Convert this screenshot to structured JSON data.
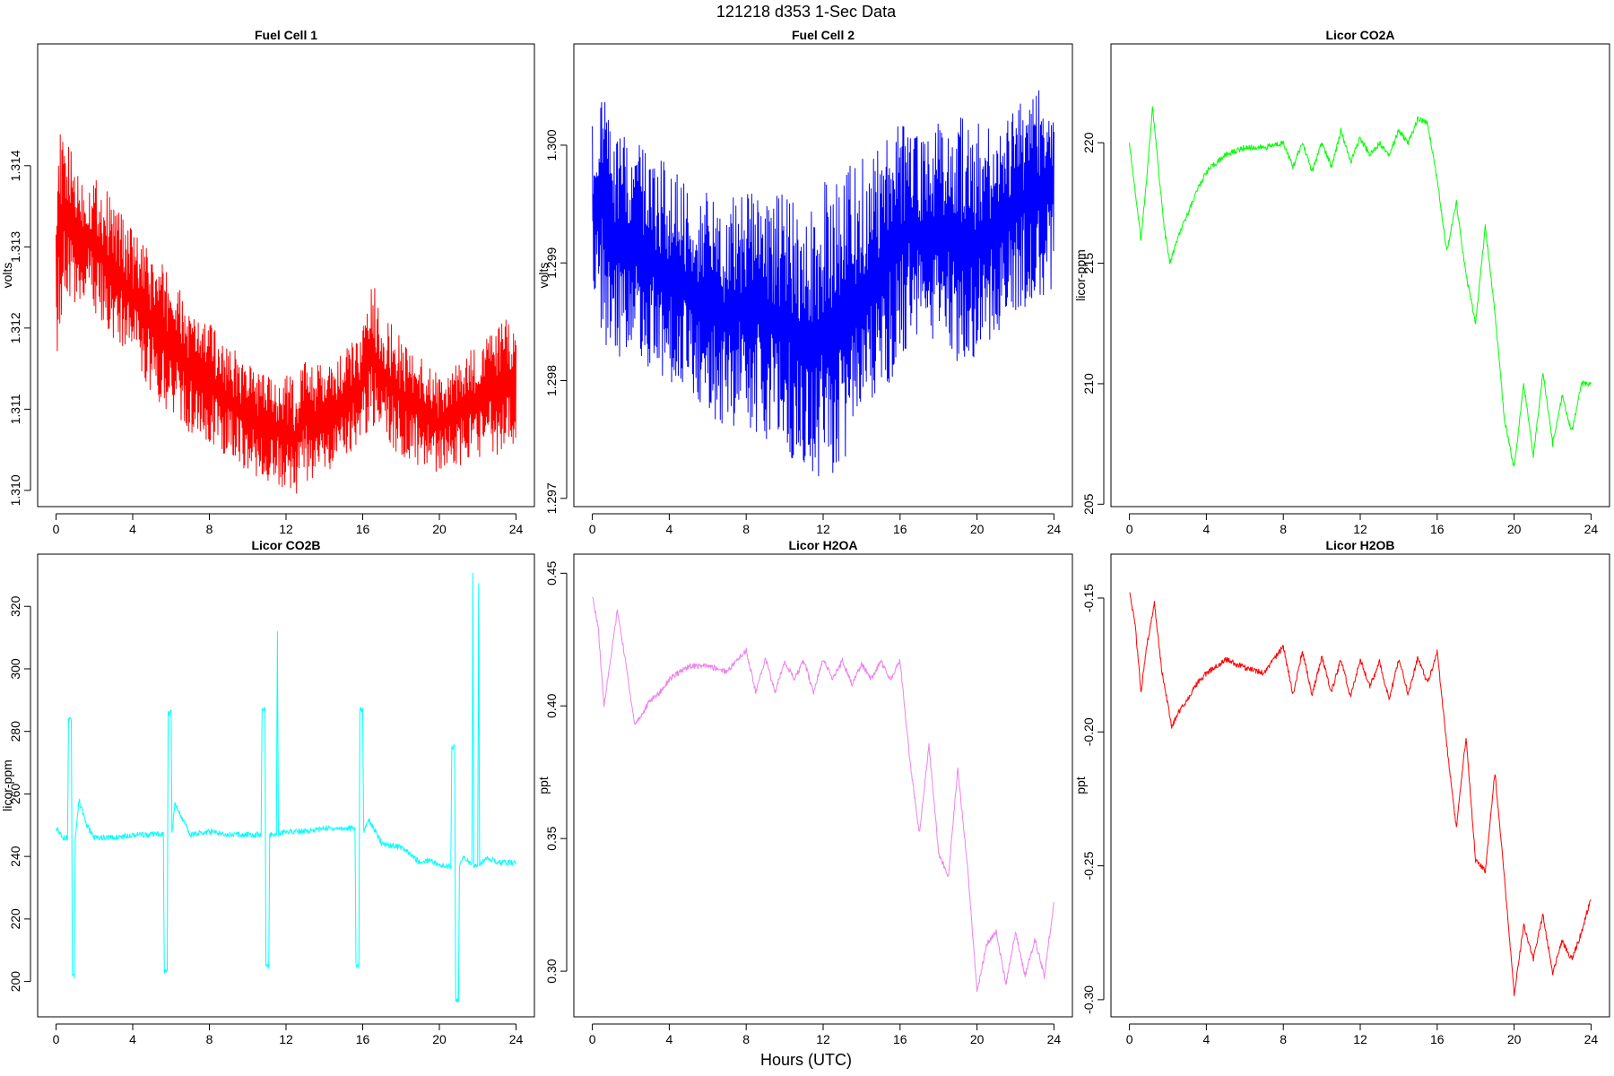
{
  "figure": {
    "title": "121218   d353   1-Sec Data",
    "xlabel": "Hours (UTC)"
  },
  "chart_data": [
    {
      "type": "line",
      "title": "Fuel Cell 1",
      "ylabel": "volts",
      "color": "#ff0000",
      "xlim": [
        0,
        24
      ],
      "ylim": [
        1.3098,
        1.3155
      ],
      "xticks": [
        0,
        4,
        8,
        12,
        16,
        20,
        24
      ],
      "yticks": [
        1.31,
        1.311,
        1.312,
        1.313,
        1.314
      ],
      "ytick_labels": [
        "1.310",
        "1.311",
        "1.312",
        "1.313",
        "1.314"
      ],
      "x": [
        0,
        0.5,
        1,
        1.5,
        2,
        3,
        4,
        5,
        6,
        7,
        8,
        9,
        10,
        11,
        12,
        12.5,
        13,
        14,
        15,
        16,
        16.5,
        17,
        18,
        19,
        20,
        21,
        22,
        23,
        24
      ],
      "ymin": [
        1.3115,
        1.3125,
        1.3122,
        1.3124,
        1.3122,
        1.3118,
        1.3116,
        1.3112,
        1.3109,
        1.3107,
        1.3106,
        1.3104,
        1.3102,
        1.3101,
        1.31,
        1.3099,
        1.3101,
        1.3102,
        1.3104,
        1.3106,
        1.3108,
        1.3107,
        1.3104,
        1.3103,
        1.3102,
        1.3103,
        1.3104,
        1.3104,
        1.3106
      ],
      "ymax": [
        1.3145,
        1.3143,
        1.3141,
        1.3138,
        1.3139,
        1.3136,
        1.3132,
        1.3129,
        1.3127,
        1.3122,
        1.3121,
        1.3118,
        1.3116,
        1.3114,
        1.3115,
        1.3113,
        1.3117,
        1.3115,
        1.3117,
        1.312,
        1.3126,
        1.3122,
        1.3119,
        1.3117,
        1.3114,
        1.3116,
        1.3118,
        1.3121,
        1.3121
      ]
    },
    {
      "type": "line",
      "title": "Fuel Cell 2",
      "ylabel": "volts",
      "color": "#0000ff",
      "xlim": [
        0,
        24
      ],
      "ylim": [
        1.29693,
        1.30086
      ],
      "xticks": [
        0,
        4,
        8,
        12,
        16,
        20,
        24
      ],
      "yticks": [
        1.297,
        1.298,
        1.299,
        1.3
      ],
      "ytick_labels": [
        "1.297",
        "1.298",
        "1.299",
        "1.300"
      ],
      "x": [
        0,
        0.5,
        1,
        2,
        3,
        4,
        5,
        6,
        7,
        8,
        9,
        10,
        11,
        12,
        13,
        14,
        15,
        16,
        16.5,
        17,
        18,
        19,
        20,
        21,
        22,
        23,
        24
      ],
      "ymin": [
        1.2987,
        1.2984,
        1.2981,
        1.2983,
        1.2981,
        1.298,
        1.2979,
        1.2977,
        1.2976,
        1.2976,
        1.2975,
        1.2974,
        1.2972,
        1.2971,
        1.2973,
        1.2976,
        1.2979,
        1.2981,
        1.2983,
        1.2984,
        1.2983,
        1.2981,
        1.2981,
        1.2984,
        1.2986,
        1.2986,
        1.2988
      ],
      "ymax": [
        1.3002,
        1.3006,
        1.3002,
        1.3,
        1.3,
        1.2998,
        1.2997,
        1.2996,
        1.2995,
        1.2997,
        1.2996,
        1.2996,
        1.2995,
        1.2997,
        1.2998,
        1.2999,
        1.3,
        1.3002,
        1.3003,
        1.3001,
        1.3002,
        1.3003,
        1.3002,
        1.3001,
        1.3004,
        1.3005,
        1.3005
      ]
    },
    {
      "type": "line",
      "title": "Licor CO2A",
      "ylabel": "licor-ppm",
      "color": "#00ff00",
      "xlim": [
        0,
        24
      ],
      "ylim": [
        204.9,
        224.1
      ],
      "xticks": [
        0,
        4,
        8,
        12,
        16,
        20,
        24
      ],
      "yticks": [
        205,
        210,
        215,
        220
      ],
      "ytick_labels": [
        "205",
        "210",
        "215",
        "220"
      ],
      "x": [
        0,
        0.3,
        0.6,
        0.9,
        1.2,
        1.5,
        1.8,
        2.1,
        2.5,
        3,
        3.5,
        4,
        5,
        6,
        7,
        8,
        8.5,
        9,
        9.5,
        10,
        10.5,
        11,
        11.5,
        12,
        12.5,
        13,
        13.5,
        14,
        14.5,
        15,
        15.5,
        16,
        16.5,
        17,
        17.5,
        18,
        18.5,
        19,
        19.5,
        20,
        20.5,
        21,
        21.5,
        22,
        22.5,
        23,
        23.5,
        24
      ],
      "y": [
        220.0,
        218.0,
        216.0,
        218.5,
        221.5,
        219.0,
        216.5,
        215.0,
        216.0,
        217.0,
        218.0,
        218.8,
        219.5,
        219.8,
        219.8,
        220.0,
        219.0,
        220.0,
        218.8,
        220.0,
        219.0,
        220.5,
        219.2,
        220.2,
        219.5,
        220.0,
        219.5,
        220.5,
        220.0,
        221.0,
        220.8,
        218.5,
        215.5,
        217.5,
        214.5,
        212.5,
        216.5,
        213.0,
        208.5,
        206.5,
        210.0,
        207.0,
        210.5,
        207.5,
        209.5,
        208.0,
        210.0,
        210.0
      ]
    },
    {
      "type": "line",
      "title": "Licor CO2B",
      "ylabel": "licor-ppm",
      "color": "#00ffff",
      "xlim": [
        0,
        24
      ],
      "ylim": [
        188.7,
        336.7
      ],
      "xticks": [
        0,
        4,
        8,
        12,
        16,
        20,
        24
      ],
      "yticks": [
        200,
        220,
        240,
        260,
        280,
        300,
        320
      ],
      "ytick_labels": [
        "200",
        "220",
        "240",
        "260",
        "280",
        "300",
        "320"
      ],
      "x": [
        0,
        0.4,
        0.6,
        0.65,
        0.8,
        0.85,
        0.95,
        1.0,
        1.2,
        1.6,
        2,
        3,
        4,
        5,
        5.6,
        5.65,
        5.8,
        5.85,
        6.0,
        6.05,
        6.2,
        7,
        8,
        9,
        10,
        10.7,
        10.75,
        10.9,
        10.95,
        11.1,
        11.15,
        11.3,
        11.5,
        11.55,
        11.6,
        12,
        13,
        14,
        15,
        15.6,
        15.65,
        15.8,
        15.85,
        16.0,
        16.05,
        16.3,
        17,
        18,
        19,
        19.5,
        20,
        20.5,
        20.6,
        20.65,
        20.8,
        20.85,
        21.0,
        21.05,
        21.3,
        21.7,
        21.75,
        21.8,
        22.0,
        22.05,
        22.1,
        22.5,
        23,
        23.5,
        24
      ],
      "y": [
        249,
        246,
        246,
        284,
        284,
        202,
        202,
        246,
        258,
        250,
        246,
        246,
        247,
        247,
        247,
        203,
        203,
        286,
        286,
        247,
        257,
        247,
        248,
        247,
        247,
        247,
        287,
        287,
        205,
        205,
        247,
        247,
        247,
        312,
        247,
        248,
        248,
        249,
        249,
        249,
        205,
        205,
        287,
        287,
        248,
        252,
        244,
        243,
        238,
        239,
        237,
        237,
        237,
        275,
        275,
        194,
        194,
        237,
        240,
        237,
        330,
        237,
        237,
        328,
        237,
        240,
        238,
        238,
        238
      ]
    },
    {
      "type": "line",
      "title": "Licor H2OA",
      "ylabel": "ppt",
      "color": "#ee82ee",
      "xlim": [
        0,
        24
      ],
      "ylim": [
        0.2828,
        0.4572
      ],
      "xticks": [
        0,
        4,
        8,
        12,
        16,
        20,
        24
      ],
      "yticks": [
        0.3,
        0.35,
        0.4,
        0.45
      ],
      "ytick_labels": [
        "0.30",
        "0.35",
        "0.40",
        "0.45"
      ],
      "x": [
        0,
        0.3,
        0.6,
        0.9,
        1.3,
        1.7,
        2.2,
        2.6,
        3,
        3.5,
        4,
        5,
        6,
        7,
        8,
        8.5,
        9,
        9.5,
        10,
        10.5,
        11,
        11.5,
        12,
        12.5,
        13,
        13.5,
        14,
        14.5,
        15,
        15.5,
        16,
        16.5,
        17,
        17.5,
        18,
        18.5,
        19,
        19.5,
        20,
        20.5,
        21,
        21.5,
        22,
        22.5,
        23,
        23.5,
        24
      ],
      "y": [
        0.441,
        0.43,
        0.4,
        0.415,
        0.436,
        0.418,
        0.393,
        0.397,
        0.402,
        0.405,
        0.41,
        0.415,
        0.415,
        0.413,
        0.421,
        0.405,
        0.418,
        0.405,
        0.417,
        0.41,
        0.417,
        0.405,
        0.418,
        0.41,
        0.417,
        0.408,
        0.416,
        0.41,
        0.417,
        0.41,
        0.417,
        0.38,
        0.352,
        0.385,
        0.345,
        0.335,
        0.376,
        0.34,
        0.292,
        0.31,
        0.315,
        0.295,
        0.315,
        0.298,
        0.312,
        0.298,
        0.326
      ]
    },
    {
      "type": "line",
      "title": "Licor H2OB",
      "ylabel": "ppt",
      "color": "#ff0000",
      "xlim": [
        0,
        24
      ],
      "ylim": [
        -0.3064,
        -0.1336
      ],
      "xticks": [
        0,
        4,
        8,
        12,
        16,
        20,
        24
      ],
      "yticks": [
        -0.3,
        -0.25,
        -0.2,
        -0.15
      ],
      "ytick_labels": [
        "-0.30",
        "-0.25",
        "-0.20",
        "-0.15"
      ],
      "x": [
        0,
        0.3,
        0.6,
        0.9,
        1.3,
        1.7,
        2.2,
        2.6,
        3,
        3.5,
        4,
        5,
        6,
        7,
        8,
        8.5,
        9,
        9.5,
        10,
        10.5,
        11,
        11.5,
        12,
        12.5,
        13,
        13.5,
        14,
        14.5,
        15,
        15.5,
        16,
        16.5,
        17,
        17.5,
        18,
        18.5,
        19,
        19.5,
        20,
        20.5,
        21,
        21.5,
        22,
        22.5,
        23,
        23.5,
        24
      ],
      "y": [
        -0.148,
        -0.16,
        -0.185,
        -0.168,
        -0.152,
        -0.178,
        -0.198,
        -0.192,
        -0.188,
        -0.182,
        -0.178,
        -0.173,
        -0.176,
        -0.178,
        -0.168,
        -0.186,
        -0.17,
        -0.186,
        -0.172,
        -0.185,
        -0.173,
        -0.187,
        -0.173,
        -0.183,
        -0.174,
        -0.188,
        -0.173,
        -0.186,
        -0.172,
        -0.182,
        -0.17,
        -0.205,
        -0.236,
        -0.202,
        -0.248,
        -0.252,
        -0.215,
        -0.255,
        -0.298,
        -0.272,
        -0.285,
        -0.268,
        -0.29,
        -0.278,
        -0.285,
        -0.275,
        -0.262
      ]
    }
  ]
}
